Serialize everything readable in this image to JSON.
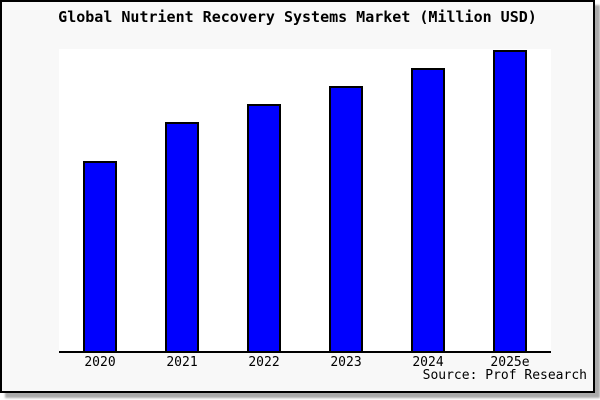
{
  "title": "Global Nutrient Recovery Systems Market (Million USD)",
  "source": "Source: Prof Research",
  "colors": {
    "bar_fill": "#0000fe",
    "bar_border": "#000000",
    "figure_background": "#f8f8f8",
    "plot_background": "#ffffff",
    "axis_line": "#000000",
    "frame_border": "#000000",
    "text": "#000000"
  },
  "chart_data": {
    "type": "bar",
    "title": "Global Nutrient Recovery Systems Market (Million USD)",
    "categories": [
      "2020",
      "2021",
      "2022",
      "2023",
      "2024",
      "2025e"
    ],
    "values": [
      63,
      76,
      82,
      88,
      94,
      100
    ],
    "xlabel": "",
    "ylabel": "",
    "ylim": [
      0,
      100
    ],
    "value_note": "relative index estimated from bar heights; chart shows no y-axis, ticks or gridlines; max bar (2025e) = 100",
    "grid": false,
    "legend_position": "none",
    "annotations": [
      "Source: Prof Research"
    ]
  }
}
